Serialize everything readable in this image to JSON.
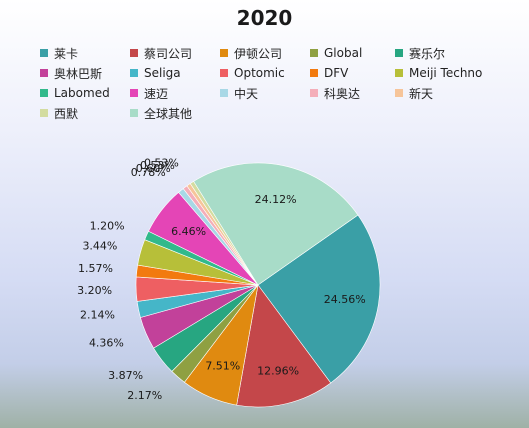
{
  "chart_data": {
    "type": "pie",
    "title": "2020",
    "legend_position": "top",
    "slices": [
      {
        "label": "莱卡",
        "value": 24.56,
        "value_label": "24.56%",
        "color": "#3a9fa6"
      },
      {
        "label": "蔡司公司",
        "value": 12.96,
        "value_label": "12.96%",
        "color": "#c4474a"
      },
      {
        "label": "伊顿公司",
        "value": 7.51,
        "value_label": "7.51%",
        "color": "#e08a10"
      },
      {
        "label": "Global",
        "value": 2.17,
        "value_label": "2.17%",
        "color": "#8fa042"
      },
      {
        "label": "赛乐尔",
        "value": 3.87,
        "value_label": "3.87%",
        "color": "#27a681"
      },
      {
        "label": "奥林巴斯",
        "value": 4.36,
        "value_label": "4.36%",
        "color": "#c2419a"
      },
      {
        "label": "Seliga",
        "value": 2.14,
        "value_label": "2.14%",
        "color": "#45b6c8"
      },
      {
        "label": "Optomic",
        "value": 3.2,
        "value_label": "3.20%",
        "color": "#ee5f62"
      },
      {
        "label": "DFV",
        "value": 1.57,
        "value_label": "1.57%",
        "color": "#f27a0f"
      },
      {
        "label": "Meiji Techno",
        "value": 3.44,
        "value_label": "3.44%",
        "color": "#b7bf39"
      },
      {
        "label": "Labomed",
        "value": 1.2,
        "value_label": "1.20%",
        "color": "#32b98b"
      },
      {
        "label": "速迈",
        "value": 6.46,
        "value_label": "6.46%",
        "color": "#e445b6"
      },
      {
        "label": "中天",
        "value": 0.78,
        "value_label": "0.78%",
        "color": "#a8d8e6"
      },
      {
        "label": "科奥达",
        "value": 0.6,
        "value_label": "0.60%",
        "color": "#f4aeb9"
      },
      {
        "label": "新天",
        "value": 0.53,
        "value_label": "0.53%",
        "color": "#f6c59a"
      },
      {
        "label": "西默",
        "value": 0.53,
        "value_label": "0.53%",
        "color": "#d3dca0"
      },
      {
        "label": "全球其他",
        "value": 24.12,
        "value_label": "24.12%",
        "color": "#a8dcc8"
      }
    ]
  }
}
